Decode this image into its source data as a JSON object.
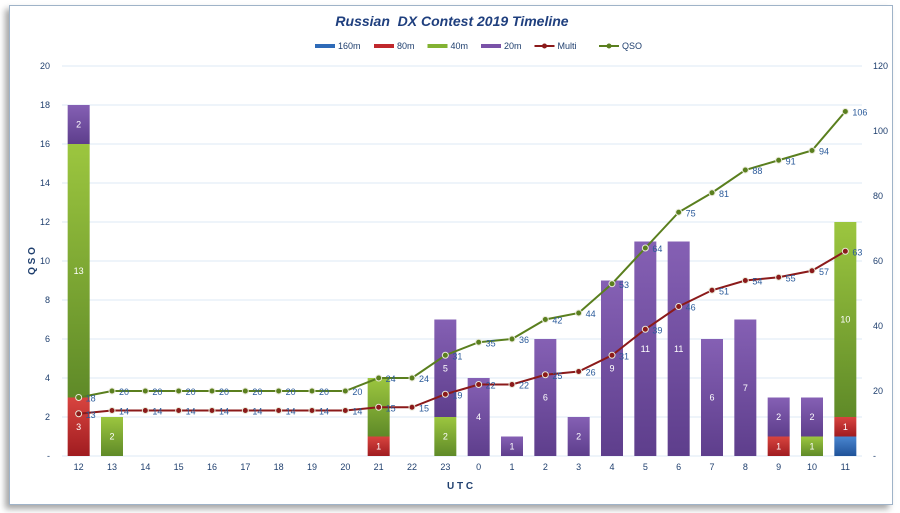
{
  "chart_data": {
    "type": "bar",
    "title": "Russian  DX Contest 2019 Timeline",
    "xlabel": "U T C",
    "ylabel": "Q S O",
    "ylim": [
      0,
      20
    ],
    "y2lim": [
      0,
      120
    ],
    "yticks": [
      "-",
      "2",
      "4",
      "6",
      "8",
      "10",
      "12",
      "14",
      "16",
      "18",
      "20"
    ],
    "y2ticks": [
      "-",
      "20",
      "40",
      "60",
      "80",
      "100",
      "120"
    ],
    "grid": true,
    "legend_position": "top",
    "categories": [
      "12",
      "13",
      "14",
      "15",
      "16",
      "17",
      "18",
      "19",
      "20",
      "21",
      "22",
      "23",
      "0",
      "1",
      "2",
      "3",
      "4",
      "5",
      "6",
      "7",
      "8",
      "9",
      "10",
      "11"
    ],
    "series": [
      {
        "name": "160m",
        "kind": "bar",
        "color": "#2e6bb8",
        "values": [
          0,
          0,
          0,
          0,
          0,
          0,
          0,
          0,
          0,
          0,
          0,
          0,
          0,
          0,
          0,
          0,
          0,
          0,
          0,
          0,
          0,
          0,
          0,
          1
        ]
      },
      {
        "name": "80m",
        "kind": "bar",
        "color": "#c0282c",
        "values": [
          3,
          0,
          0,
          0,
          0,
          0,
          0,
          0,
          0,
          1,
          0,
          0,
          0,
          0,
          0,
          0,
          0,
          0,
          0,
          0,
          0,
          1,
          0,
          1
        ]
      },
      {
        "name": "40m",
        "kind": "bar",
        "color": "#82b232",
        "values": [
          13,
          2,
          0,
          0,
          0,
          0,
          0,
          0,
          0,
          3,
          0,
          2,
          0,
          0,
          0,
          0,
          0,
          0,
          0,
          0,
          0,
          0,
          1,
          10
        ]
      },
      {
        "name": "20m",
        "kind": "bar",
        "color": "#7a52a8",
        "values": [
          2,
          0,
          0,
          0,
          0,
          0,
          0,
          0,
          0,
          0,
          0,
          5,
          4,
          1,
          6,
          2,
          9,
          11,
          11,
          6,
          7,
          2,
          2,
          0
        ]
      },
      {
        "name": "Multi",
        "kind": "line",
        "axis": "right",
        "color": "#8b1a1a",
        "values": [
          13,
          14,
          14,
          14,
          14,
          14,
          14,
          14,
          14,
          15,
          15,
          19,
          22,
          22,
          25,
          26,
          31,
          39,
          46,
          51,
          54,
          55,
          57,
          63
        ]
      },
      {
        "name": "QSO",
        "kind": "line",
        "axis": "right",
        "color": "#5a7f1e",
        "values": [
          18,
          20,
          20,
          20,
          20,
          20,
          20,
          20,
          20,
          24,
          24,
          31,
          35,
          36,
          42,
          44,
          53,
          64,
          75,
          81,
          88,
          91,
          94,
          106
        ]
      }
    ]
  }
}
